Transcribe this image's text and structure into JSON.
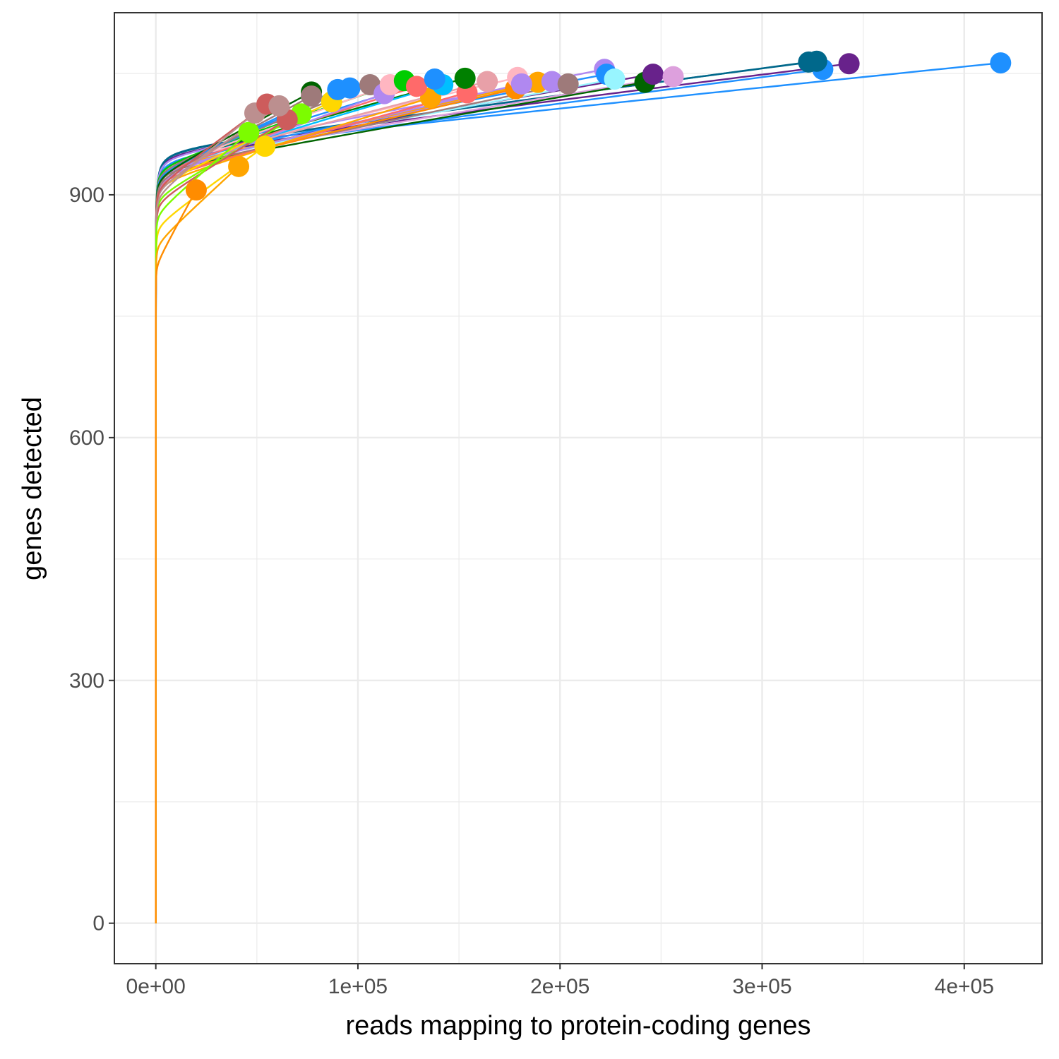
{
  "chart_data": {
    "type": "line",
    "title": "",
    "xlabel": "reads mapping to protein-coding genes",
    "ylabel": "genes detected",
    "xlim": [
      -20500,
      438500
    ],
    "ylim": [
      -50,
      1125
    ],
    "x_ticks": [
      0,
      100000,
      200000,
      300000,
      400000
    ],
    "x_tick_labels": [
      "0e+00",
      "1e+05",
      "2e+05",
      "3e+05",
      "4e+05"
    ],
    "y_ticks": [
      0,
      300,
      600,
      900
    ],
    "y_tick_labels": [
      "0",
      "300",
      "600",
      "900"
    ],
    "grid": true,
    "legend": "none",
    "series": [
      {
        "color": "#FF8C00",
        "values": [
          [
            20000,
            906
          ]
        ]
      },
      {
        "color": "#FFA500",
        "values": [
          [
            41000,
            935
          ]
        ]
      },
      {
        "color": "#FFD700",
        "values": [
          [
            54000,
            960
          ]
        ]
      },
      {
        "color": "#7CFC00",
        "values": [
          [
            46000,
            977
          ]
        ]
      },
      {
        "color": "#7CFC00",
        "values": [
          [
            72000,
            1000
          ]
        ]
      },
      {
        "color": "#CD5C5C",
        "values": [
          [
            65000,
            993
          ]
        ]
      },
      {
        "color": "#BC8F8F",
        "values": [
          [
            49000,
            1001
          ]
        ]
      },
      {
        "color": "#CD5C5C",
        "values": [
          [
            55000,
            1012
          ]
        ]
      },
      {
        "color": "#BC8F8F",
        "values": [
          [
            61000,
            1010
          ]
        ]
      },
      {
        "color": "#006400",
        "values": [
          [
            77000,
            1027
          ]
        ]
      },
      {
        "color": "#9E7A7A",
        "values": [
          [
            77000,
            1022
          ]
        ]
      },
      {
        "color": "#FFD700",
        "values": [
          [
            87000,
            1015
          ]
        ]
      },
      {
        "color": "#1E90FF",
        "values": [
          [
            90000,
            1030
          ]
        ]
      },
      {
        "color": "#1E90FF",
        "values": [
          [
            96000,
            1032
          ]
        ]
      },
      {
        "color": "#9E7A7A",
        "values": [
          [
            106000,
            1036
          ]
        ]
      },
      {
        "color": "#B088F0",
        "values": [
          [
            113000,
            1025
          ]
        ]
      },
      {
        "color": "#FFB6C1",
        "values": [
          [
            116000,
            1036
          ]
        ]
      },
      {
        "color": "#00CD00",
        "values": [
          [
            123000,
            1041
          ]
        ]
      },
      {
        "color": "#FFA500",
        "values": [
          [
            136000,
            1020
          ]
        ]
      },
      {
        "color": "#FF6A6A",
        "values": [
          [
            129000,
            1034
          ]
        ]
      },
      {
        "color": "#00BFFF",
        "values": [
          [
            142000,
            1036
          ]
        ]
      },
      {
        "color": "#1E90FF",
        "values": [
          [
            138000,
            1043
          ]
        ]
      },
      {
        "color": "#FF6A6A",
        "values": [
          [
            154000,
            1026
          ]
        ]
      },
      {
        "color": "#008000",
        "values": [
          [
            153000,
            1044
          ]
        ]
      },
      {
        "color": "#E8A0A8",
        "values": [
          [
            164000,
            1040
          ]
        ]
      },
      {
        "color": "#FF8C00",
        "values": [
          [
            178000,
            1031
          ]
        ]
      },
      {
        "color": "#FFA500",
        "values": [
          [
            189000,
            1039
          ]
        ]
      },
      {
        "color": "#FFB6C1",
        "values": [
          [
            179000,
            1045
          ]
        ]
      },
      {
        "color": "#B088F0",
        "values": [
          [
            181000,
            1037
          ]
        ]
      },
      {
        "color": "#B088F0",
        "values": [
          [
            196000,
            1040
          ]
        ]
      },
      {
        "color": "#9E7A7A",
        "values": [
          [
            204000,
            1037
          ]
        ]
      },
      {
        "color": "#B088F0",
        "values": [
          [
            222000,
            1055
          ]
        ]
      },
      {
        "color": "#1E90FF",
        "values": [
          [
            223000,
            1049
          ]
        ]
      },
      {
        "color": "#98F5FF",
        "values": [
          [
            227000,
            1043
          ]
        ]
      },
      {
        "color": "#006400",
        "values": [
          [
            242000,
            1039
          ]
        ]
      },
      {
        "color": "#68228B",
        "values": [
          [
            246000,
            1049
          ]
        ]
      },
      {
        "color": "#DDA0DD",
        "values": [
          [
            256000,
            1046
          ]
        ]
      },
      {
        "color": "#1E90FF",
        "values": [
          [
            330000,
            1055
          ]
        ]
      },
      {
        "color": "#00688B",
        "values": [
          [
            323000,
            1064
          ]
        ]
      },
      {
        "color": "#00688B",
        "values": [
          [
            327000,
            1065
          ]
        ]
      },
      {
        "color": "#68228B",
        "values": [
          [
            343000,
            1062
          ]
        ]
      },
      {
        "color": "#1E90FF",
        "values": [
          [
            418000,
            1063
          ]
        ]
      }
    ]
  }
}
